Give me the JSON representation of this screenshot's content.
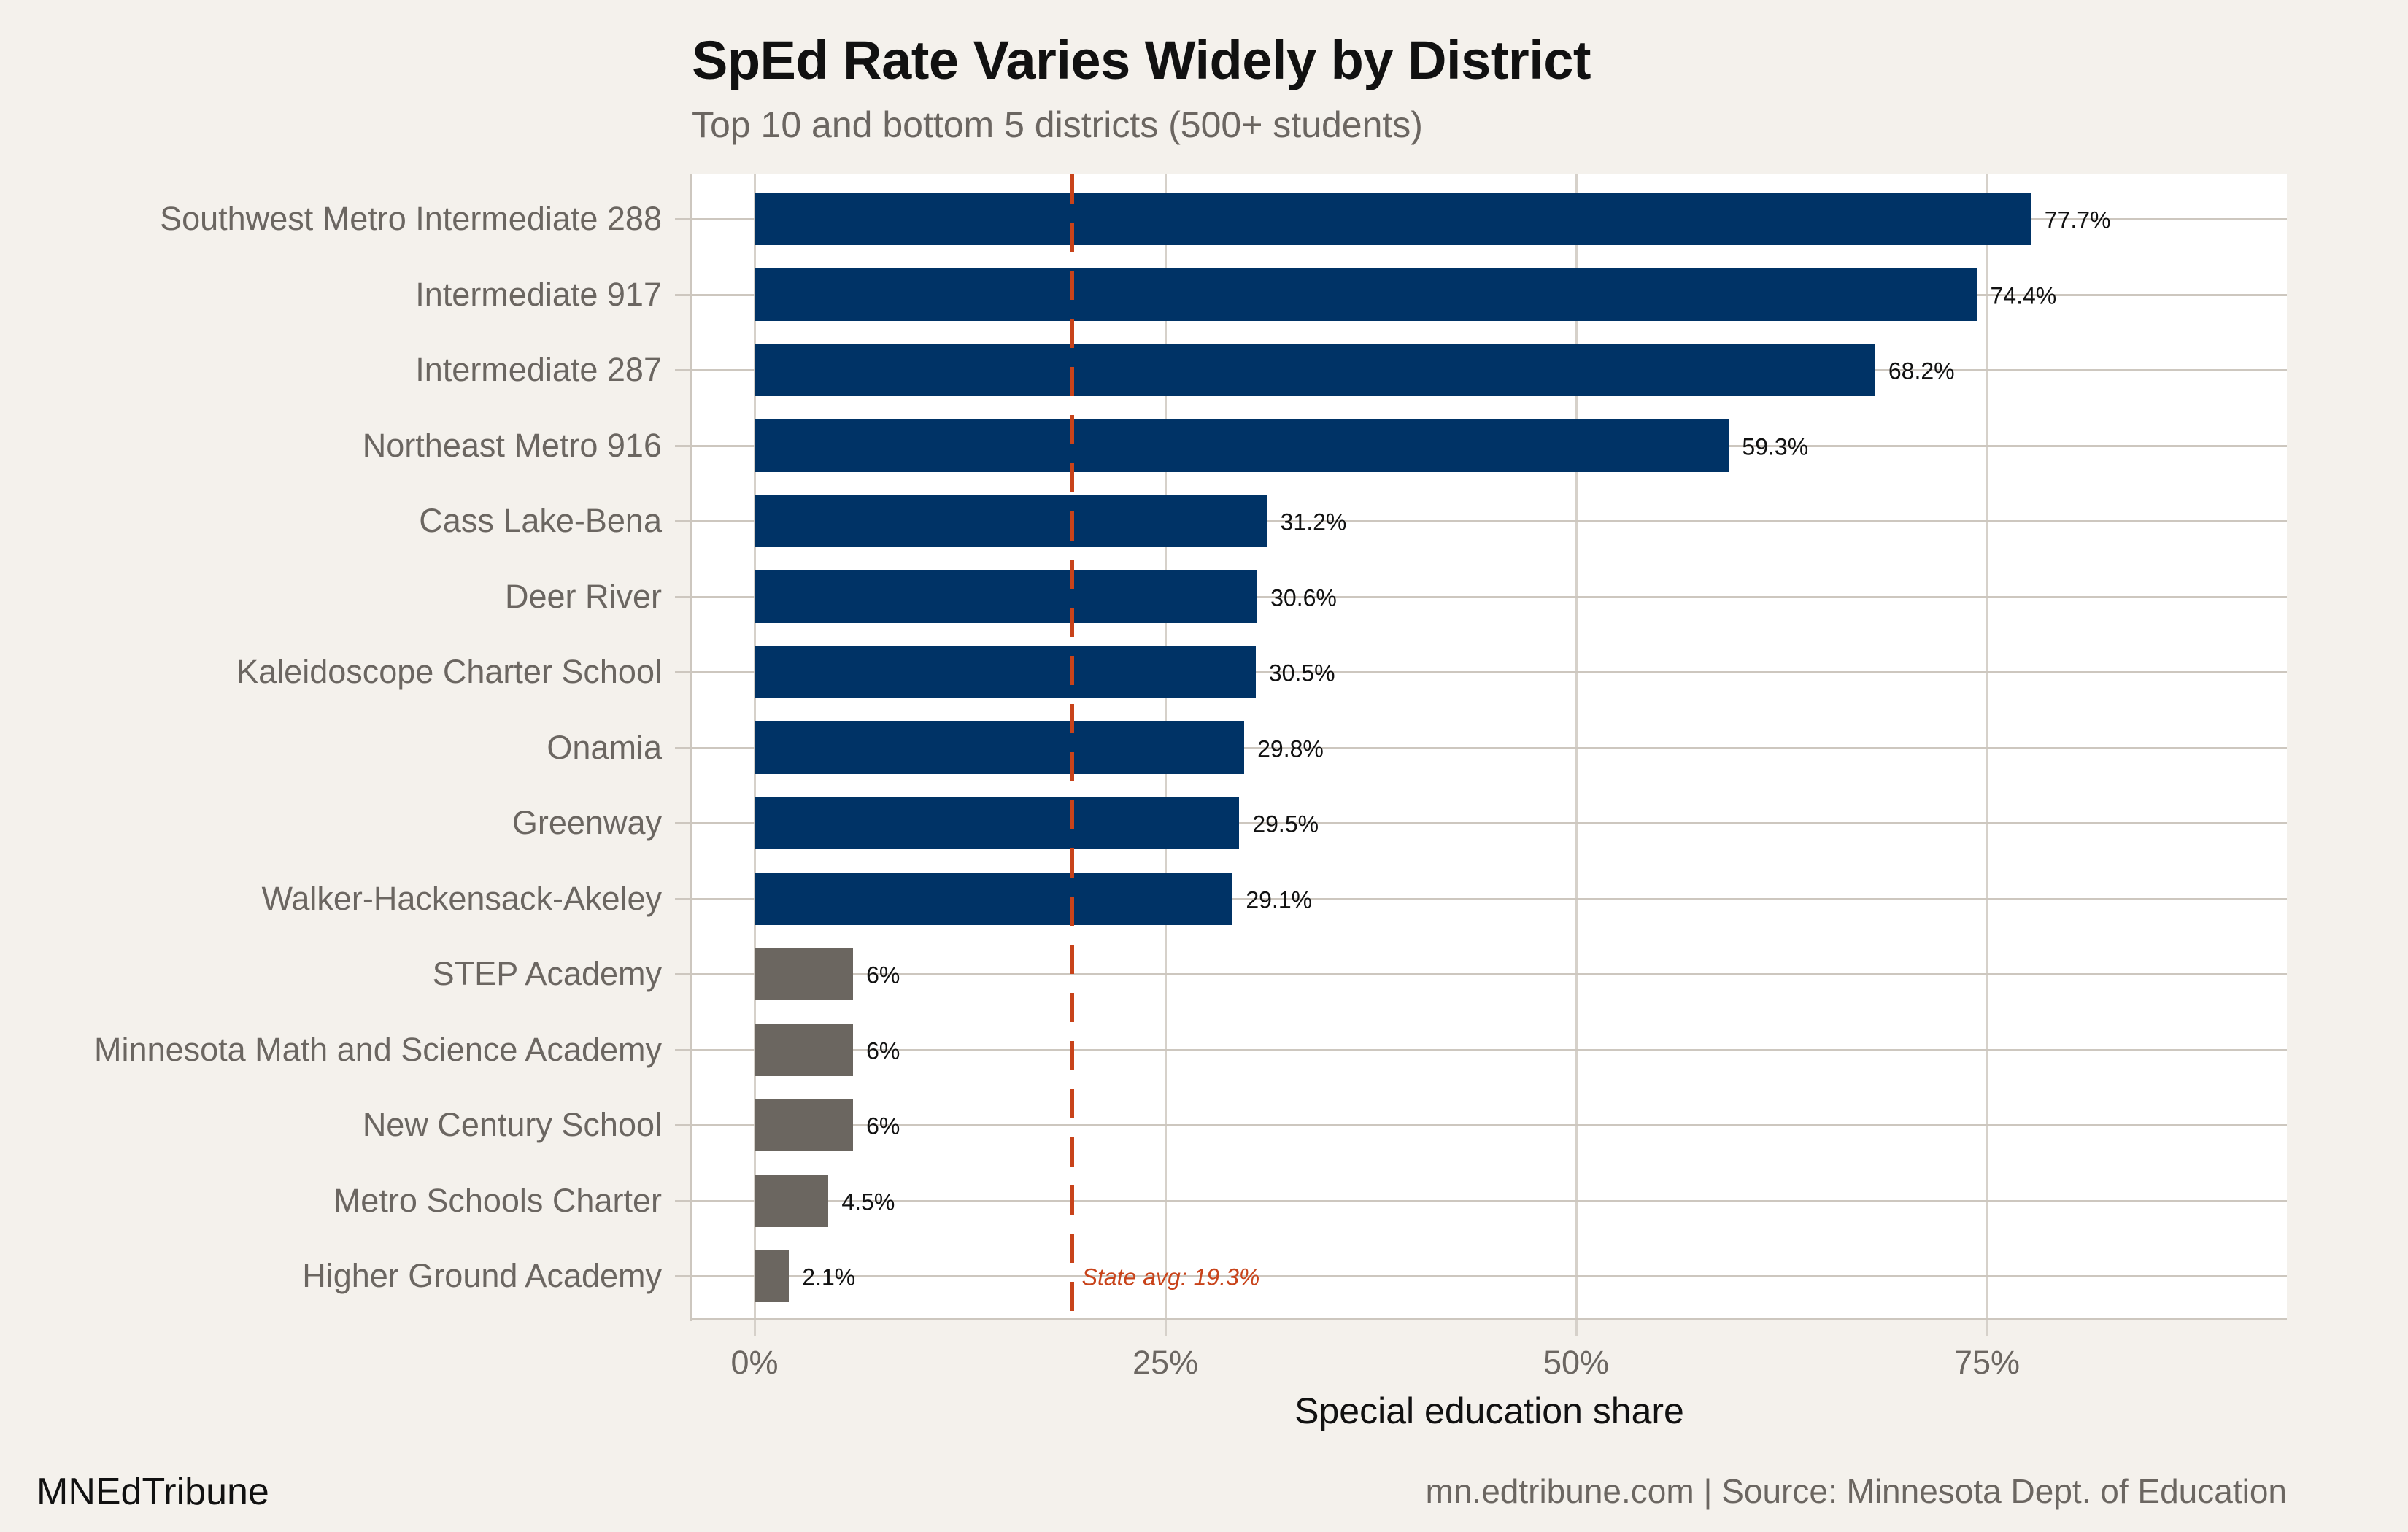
{
  "header": {
    "title": "SpEd Rate Varies Widely by District",
    "subtitle": "Top 10 and bottom 5 districts (500+ students)"
  },
  "footer": {
    "brand": "MNEdTribune",
    "source": "mn.edtribune.com | Source: Minnesota Dept. of Education"
  },
  "colors": {
    "background": "#f4f1ec",
    "panel": "#ffffff",
    "top_bar": "#003366",
    "bottom_bar": "#6b6660",
    "reference_line": "#c8431a",
    "grid": "#d6d1ca"
  },
  "reference": {
    "label": "State avg: 19.3%",
    "value": 19.3
  },
  "chart_data": {
    "type": "bar",
    "orientation": "horizontal",
    "title": "SpEd Rate Varies Widely by District",
    "subtitle": "Top 10 and bottom 5 districts (500+ students)",
    "xlabel": "Special education share",
    "ylabel": "",
    "xlim": [
      -3.8,
      93.2
    ],
    "x_ticks": [
      "0%",
      "25%",
      "50%",
      "75%"
    ],
    "x_tick_values": [
      0,
      25,
      50,
      75
    ],
    "grid": true,
    "legend": null,
    "categories": [
      "Southwest Metro Intermediate 288",
      "Intermediate 917",
      "Intermediate 287",
      "Northeast Metro 916",
      "Cass Lake-Bena",
      "Deer River",
      "Kaleidoscope Charter School",
      "Onamia",
      "Greenway",
      "Walker-Hackensack-Akeley",
      "STEP Academy",
      "Minnesota Math and Science Academy",
      "New Century School",
      "Metro Schools Charter",
      "Higher Ground Academy"
    ],
    "values": [
      77.7,
      74.4,
      68.2,
      59.3,
      31.2,
      30.6,
      30.5,
      29.8,
      29.5,
      29.1,
      6.0,
      6.0,
      6.0,
      4.5,
      2.1
    ],
    "value_labels": [
      "77.7%",
      "74.4%",
      "68.2%",
      "59.3%",
      "31.2%",
      "30.6%",
      "30.5%",
      "29.8%",
      "29.5%",
      "29.1%",
      "6%",
      "6%",
      "6%",
      "4.5%",
      "2.1%"
    ],
    "groups": [
      "top",
      "top",
      "top",
      "top",
      "top",
      "top",
      "top",
      "top",
      "top",
      "top",
      "bottom",
      "bottom",
      "bottom",
      "bottom",
      "bottom"
    ],
    "annotations": [
      {
        "type": "vline",
        "x": 19.3,
        "style": "dashed",
        "color": "#c8431a",
        "label": "State avg: 19.3%"
      }
    ],
    "source": "mn.edtribune.com | Source: Minnesota Dept. of Education"
  }
}
